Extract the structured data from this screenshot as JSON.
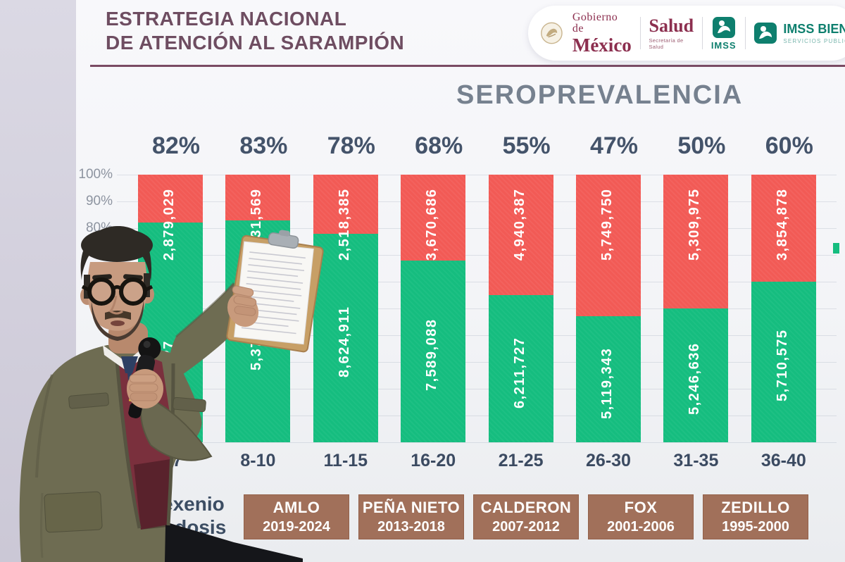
{
  "header": {
    "title_line1": "ESTRATEGIA NACIONAL",
    "title_line2": "DE ATENCIÓN AL SARAMPIÓN"
  },
  "logo_bar": {
    "gobierno_top": "Gobierno de",
    "gobierno_bottom": "México",
    "salud_title": "Salud",
    "salud_sub": "Secretaría de Salud",
    "imss_label": "IMSS",
    "imss_bienestar_title": "IMSS BIEN",
    "imss_bienestar_sub": "SERVICIOS PUBLICOS"
  },
  "chart_data": {
    "type": "bar",
    "stacked": true,
    "title": "SEROPREVALENCIA",
    "y_axis_visible_ticks": [
      "100%",
      "90%",
      "80%"
    ],
    "y_range": [
      0,
      100
    ],
    "grid": true,
    "categories": [
      "7",
      "8-10",
      "11-15",
      "16-20",
      "21-25",
      "26-30",
      "31-35",
      "36-40"
    ],
    "percent_labels": [
      "82%",
      "83%",
      "78%",
      "68%",
      "55%",
      "47%",
      "50%",
      "60%"
    ],
    "seroprevalence_percent": [
      82,
      83,
      78,
      68,
      55,
      47,
      50,
      60
    ],
    "series": [
      {
        "name": "segment-top-red",
        "color": "#f25a55",
        "labels": [
          "2,879,029",
          "1,031,569",
          "2,518,385",
          "3,670,686",
          "4,940,387",
          "5,749,750",
          "5,309,975",
          "3,854,878"
        ],
        "values": [
          2879029,
          1031569,
          2518385,
          3670686,
          4940387,
          5749750,
          5309975,
          3854878
        ]
      },
      {
        "name": "segment-bottom-green",
        "color": "#15bd7f",
        "labels": [
          ",427",
          "5,375,",
          "8,624,911",
          "7,589,088",
          "6,211,727",
          "5,119,343",
          "5,246,636",
          "5,710,575"
        ],
        "values": [
          null,
          null,
          8624911,
          7589088,
          6211727,
          5119343,
          5246636,
          5710575
        ]
      }
    ]
  },
  "footer": {
    "left_caption_line1": "exenio",
    "left_caption_line2": "ª dosis",
    "presidents": [
      {
        "name": "AMLO",
        "years": "2019-2024"
      },
      {
        "name": "PEÑA NIETO",
        "years": "2013-2018"
      },
      {
        "name": "CALDERON",
        "years": "2007-2012"
      },
      {
        "name": "FOX",
        "years": "2001-2006"
      },
      {
        "name": "ZEDILLO",
        "years": "1995-2000"
      }
    ]
  },
  "colors": {
    "bar_red": "#f25a55",
    "bar_green": "#15bd7f",
    "title_maroon": "#6e4d61",
    "president_box_brown": "#a1705a",
    "text_slate": "#3b4a61",
    "logo_maroon": "#8c2f4f",
    "logo_teal": "#0e7f6e"
  }
}
